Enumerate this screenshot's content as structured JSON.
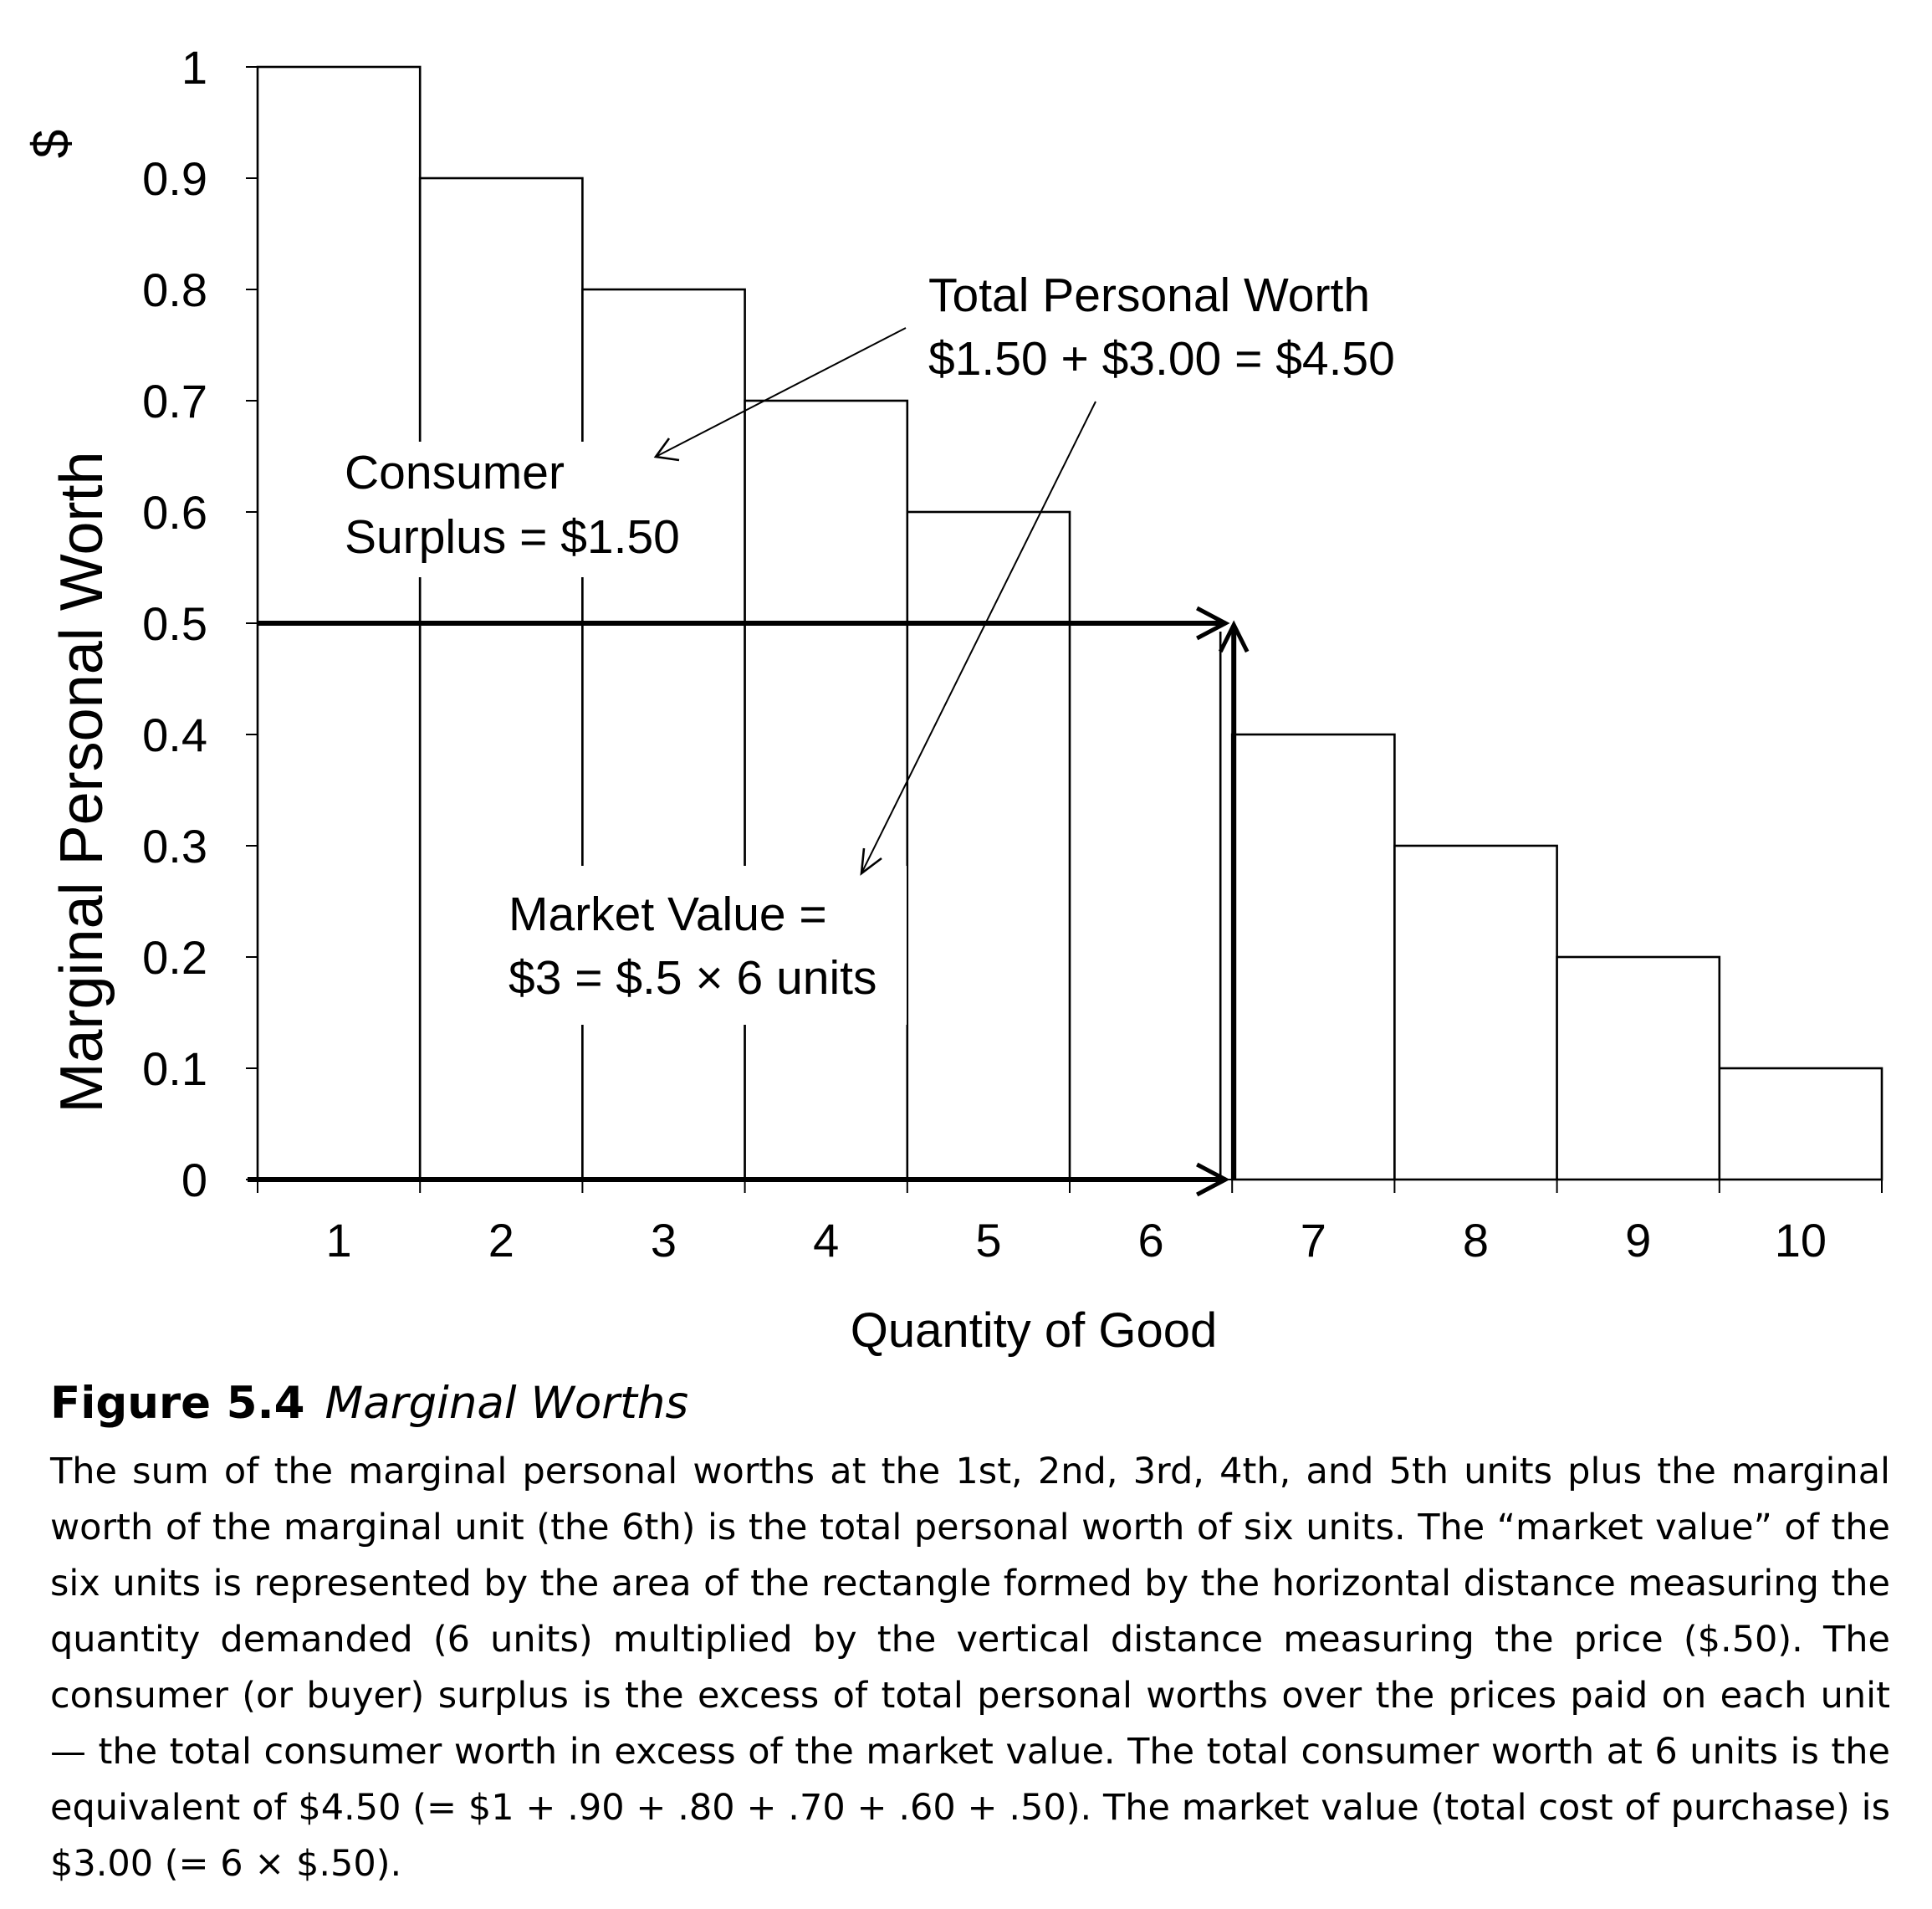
{
  "chart_data": {
    "type": "bar",
    "categories": [
      "1",
      "2",
      "3",
      "4",
      "5",
      "6",
      "7",
      "8",
      "9",
      "10"
    ],
    "values": [
      1,
      0.9,
      0.8,
      0.7,
      0.6,
      0.5,
      0.4,
      0.3,
      0.2,
      0.1
    ],
    "xlabel": "Quantity of Good",
    "ylabel": "Marginal Personal Worth",
    "yunit": "$",
    "ylim": [
      0,
      1
    ],
    "yticks": [
      "0",
      "0.1",
      "0.2",
      "0.3",
      "0.4",
      "0.5",
      "0.6",
      "0.7",
      "0.8",
      "0.9",
      "1"
    ],
    "price": 0.5,
    "quantity_demanded": 6,
    "grid": false,
    "legend": "none",
    "annotations": {
      "total_worth": [
        "Total Personal Worth",
        "$1.50 + $3.00 = $4.50"
      ],
      "consumer_surplus": [
        "Consumer",
        "Surplus = $1.50"
      ],
      "market_value": [
        "Market Value =",
        "$3 = $.5 × 6 units"
      ]
    }
  },
  "caption": {
    "number": "Figure 5.4",
    "title": "Marginal Worths",
    "text": "The sum of the marginal personal worths at the 1st, 2nd, 3rd, 4th, and 5th units plus the marginal worth of the marginal unit (the 6th) is the total personal worth of six units. The “market value” of the six units is represented by the area of the rectangle formed by the horizontal distance measuring the quantity demanded (6 units) multiplied by the vertical distance measuring the price ($.50). The consumer (or buyer) surplus is the excess of total personal worths over the prices paid on each unit — the total consumer worth in excess of the market value. The total consumer worth at 6 units is the equivalent of $4.50 (= $1 + .90 + .80 + .70 + .60 + .50). The market value (total cost of purchase) is $3.00 (= 6 × $.50)."
  }
}
